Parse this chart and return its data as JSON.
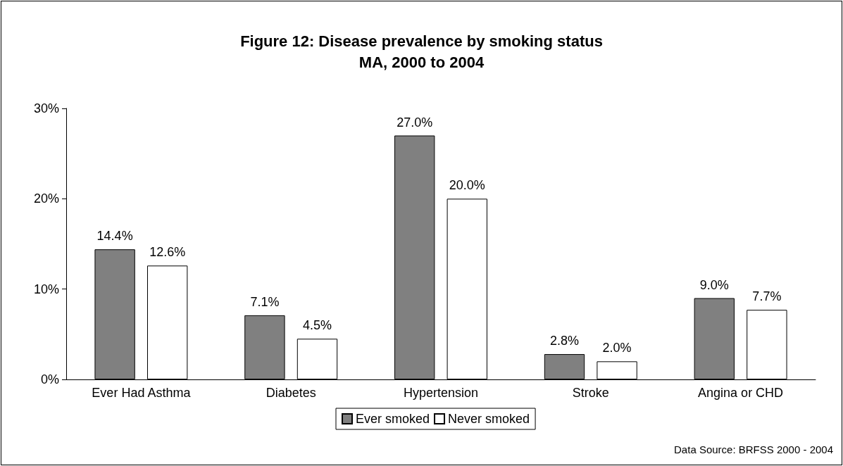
{
  "chart_data": {
    "type": "bar",
    "title": "Figure 12: Disease prevalence by smoking status",
    "subtitle": "MA, 2000 to 2004",
    "categories": [
      "Ever Had Asthma",
      "Diabetes",
      "Hypertension",
      "Stroke",
      "Angina or CHD"
    ],
    "series": [
      {
        "name": "Ever smoked",
        "color": "#808080",
        "values": [
          14.4,
          7.1,
          27.0,
          2.8,
          9.0
        ],
        "value_labels": [
          "14.4%",
          "7.1%",
          "27.0%",
          "2.8%",
          "9.0%"
        ]
      },
      {
        "name": "Never smoked",
        "color": "#ffffff",
        "values": [
          12.6,
          4.5,
          20.0,
          2.0,
          7.7
        ],
        "value_labels": [
          "12.6%",
          "4.5%",
          "20.0%",
          "2.0%",
          "7.7%"
        ]
      }
    ],
    "ylim": [
      0,
      30
    ],
    "yticks": [
      {
        "value": 0,
        "label": "0%"
      },
      {
        "value": 10,
        "label": "10%"
      },
      {
        "value": 20,
        "label": "20%"
      },
      {
        "value": 30,
        "label": "30%"
      }
    ],
    "grid": false,
    "legend": "bottom",
    "annotations": [
      "Data Source: BRFSS 2000 - 2004"
    ]
  }
}
